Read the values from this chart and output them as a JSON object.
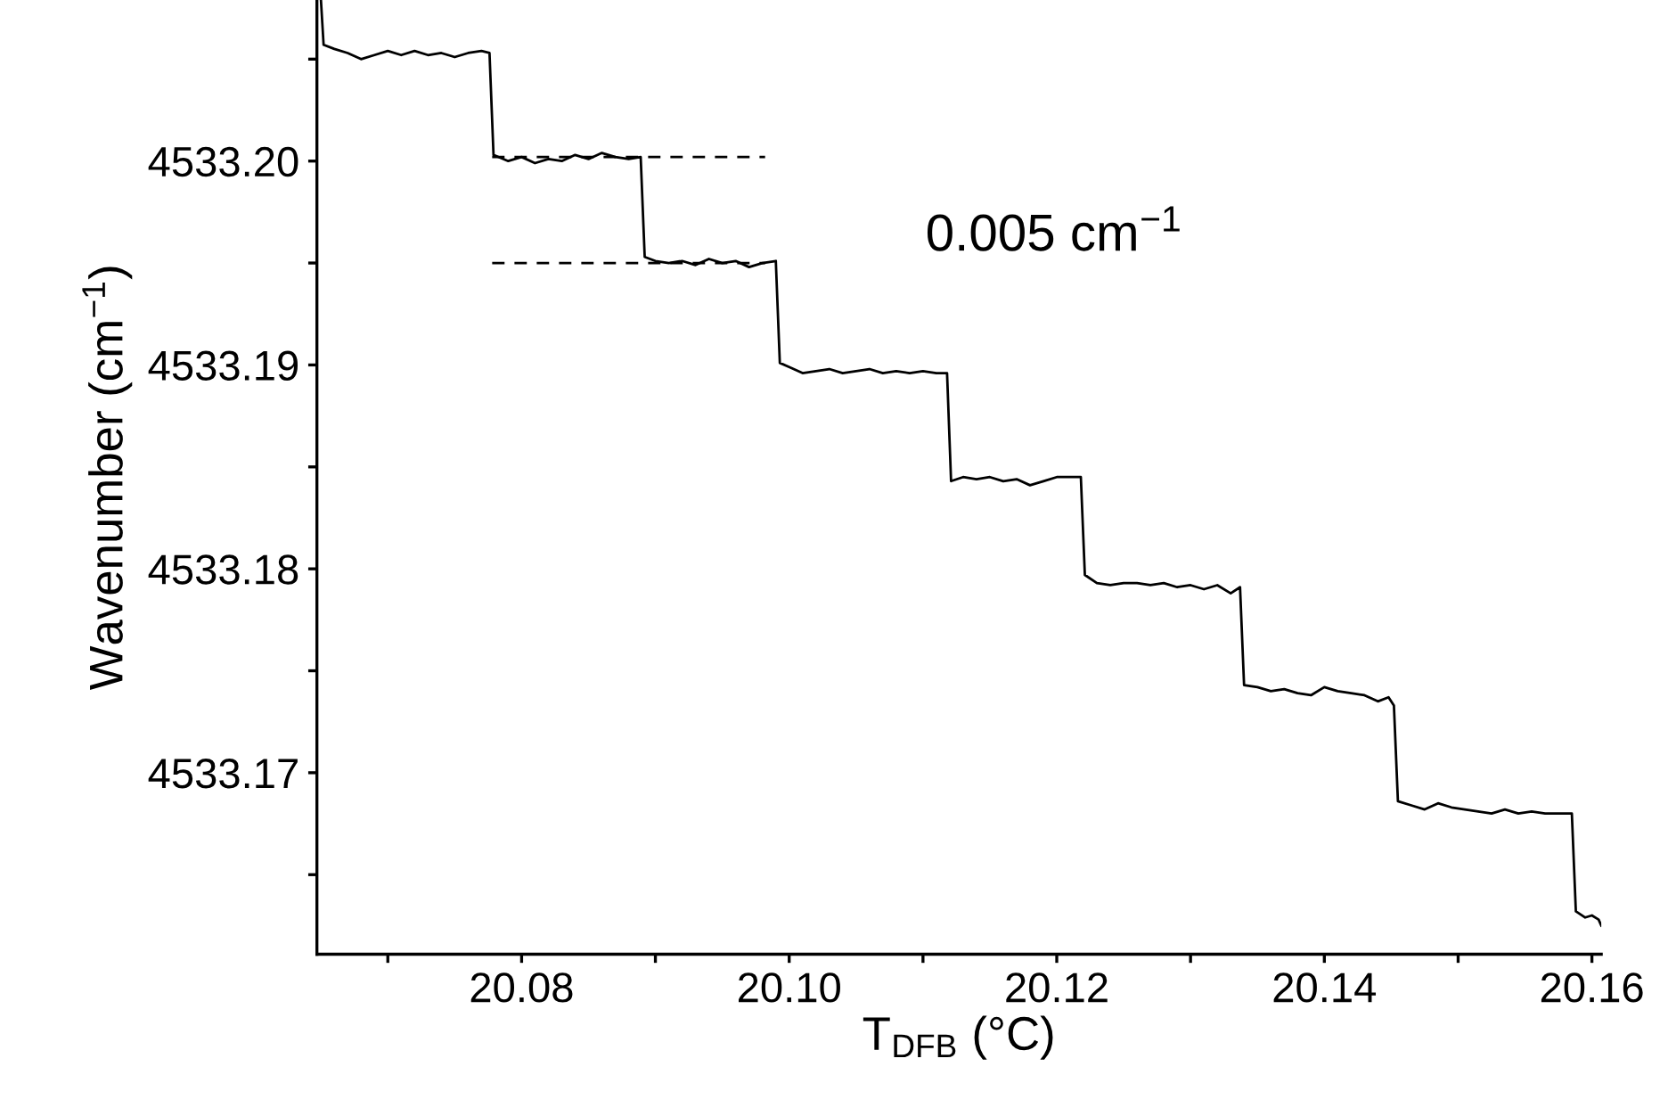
{
  "chart_data": {
    "type": "line",
    "xlabel": "T$_{DFB}$ (°C)",
    "ylabel": "Wavenumber (cm$^{−1}$)",
    "xlim": [
      20.0647,
      20.1607
    ],
    "ylim": [
      4533.1611,
      4533.2079
    ],
    "xticks": [
      {
        "value": 20.07,
        "label": null
      },
      {
        "value": 20.08,
        "label": "20.08"
      },
      {
        "value": 20.09,
        "label": null
      },
      {
        "value": 20.1,
        "label": "20.10"
      },
      {
        "value": 20.11,
        "label": null
      },
      {
        "value": 20.12,
        "label": "20.12"
      },
      {
        "value": 20.13,
        "label": null
      },
      {
        "value": 20.14,
        "label": "20.14"
      },
      {
        "value": 20.15,
        "label": null
      },
      {
        "value": 20.16,
        "label": "20.16"
      }
    ],
    "yticks": [
      {
        "value": 4533.165,
        "label": null
      },
      {
        "value": 4533.17,
        "label": "4533.17"
      },
      {
        "value": 4533.175,
        "label": null
      },
      {
        "value": 4533.18,
        "label": "4533.18"
      },
      {
        "value": 4533.185,
        "label": null
      },
      {
        "value": 4533.19,
        "label": "4533.19"
      },
      {
        "value": 4533.195,
        "label": null
      },
      {
        "value": 4533.2,
        "label": "4533.20"
      },
      {
        "value": 4533.205,
        "label": null
      }
    ],
    "grid": false,
    "annotations": [
      "0.005 cm$^{−1}$"
    ],
    "series": [
      {
        "color": "#000000",
        "line_style": "solid",
        "x": [
          20.065,
          20.0652,
          20.066,
          20.067,
          20.068,
          20.069,
          20.07,
          20.071,
          20.072,
          20.073,
          20.074,
          20.075,
          20.076,
          20.077,
          20.0776,
          20.0779,
          20.079,
          20.08,
          20.081,
          20.082,
          20.083,
          20.084,
          20.085,
          20.086,
          20.087,
          20.088,
          20.0889,
          20.0892,
          20.09,
          20.091,
          20.092,
          20.093,
          20.094,
          20.095,
          20.096,
          20.097,
          20.098,
          20.099,
          20.0993,
          20.1,
          20.101,
          20.102,
          20.103,
          20.104,
          20.105,
          20.106,
          20.107,
          20.108,
          20.109,
          20.11,
          20.111,
          20.1118,
          20.1121,
          20.113,
          20.114,
          20.115,
          20.116,
          20.117,
          20.118,
          20.119,
          20.12,
          20.121,
          20.1218,
          20.1221,
          20.123,
          20.124,
          20.125,
          20.126,
          20.127,
          20.128,
          20.129,
          20.13,
          20.131,
          20.132,
          20.133,
          20.1337,
          20.134,
          20.135,
          20.136,
          20.137,
          20.138,
          20.139,
          20.14,
          20.141,
          20.142,
          20.143,
          20.144,
          20.1448,
          20.1452,
          20.1455,
          20.1465,
          20.1475,
          20.1485,
          20.1495,
          20.1505,
          20.1515,
          20.1525,
          20.1535,
          20.1545,
          20.1555,
          20.1565,
          20.1575,
          20.1585,
          20.1588,
          20.1595,
          20.16,
          20.1605,
          20.1607
        ],
        "values": [
          4533.2079,
          4533.2057,
          4533.2055,
          4533.2053,
          4533.205,
          4533.2052,
          4533.2054,
          4533.2052,
          4533.2054,
          4533.2052,
          4533.2053,
          4533.2051,
          4533.2053,
          4533.2054,
          4533.2053,
          4533.2003,
          4533.2,
          4533.2002,
          4533.1999,
          4533.2001,
          4533.2,
          4533.2003,
          4533.2001,
          4533.2004,
          4533.2002,
          4533.2001,
          4533.2002,
          4533.1953,
          4533.1951,
          4533.195,
          4533.1951,
          4533.1949,
          4533.1952,
          4533.195,
          4533.1951,
          4533.1948,
          4533.195,
          4533.1951,
          4533.1901,
          4533.1899,
          4533.1896,
          4533.1897,
          4533.1898,
          4533.1896,
          4533.1897,
          4533.1898,
          4533.1896,
          4533.1897,
          4533.1896,
          4533.1897,
          4533.1896,
          4533.1896,
          4533.1843,
          4533.1845,
          4533.1844,
          4533.1845,
          4533.1843,
          4533.1844,
          4533.1841,
          4533.1843,
          4533.1845,
          4533.1845,
          4533.1845,
          4533.1797,
          4533.1793,
          4533.1792,
          4533.1793,
          4533.1793,
          4533.1792,
          4533.1793,
          4533.1791,
          4533.1792,
          4533.179,
          4533.1792,
          4533.1788,
          4533.1791,
          4533.1743,
          4533.1742,
          4533.174,
          4533.1741,
          4533.1739,
          4533.1738,
          4533.1742,
          4533.174,
          4533.1739,
          4533.1738,
          4533.1735,
          4533.1737,
          4533.1733,
          4533.1686,
          4533.1684,
          4533.1682,
          4533.1685,
          4533.1683,
          4533.1682,
          4533.1681,
          4533.168,
          4533.1682,
          4533.168,
          4533.1681,
          4533.168,
          4533.168,
          4533.168,
          4533.1632,
          4533.1629,
          4533.163,
          4533.1628,
          4533.1625
        ]
      },
      {
        "color": "#000000",
        "line_style": "dashed",
        "x": [
          20.0778,
          20.0982
        ],
        "values": [
          4533.2002,
          4533.2002
        ]
      },
      {
        "color": "#000000",
        "line_style": "dashed",
        "x": [
          20.0778,
          20.0982
        ],
        "values": [
          4533.195,
          4533.195
        ]
      }
    ]
  }
}
